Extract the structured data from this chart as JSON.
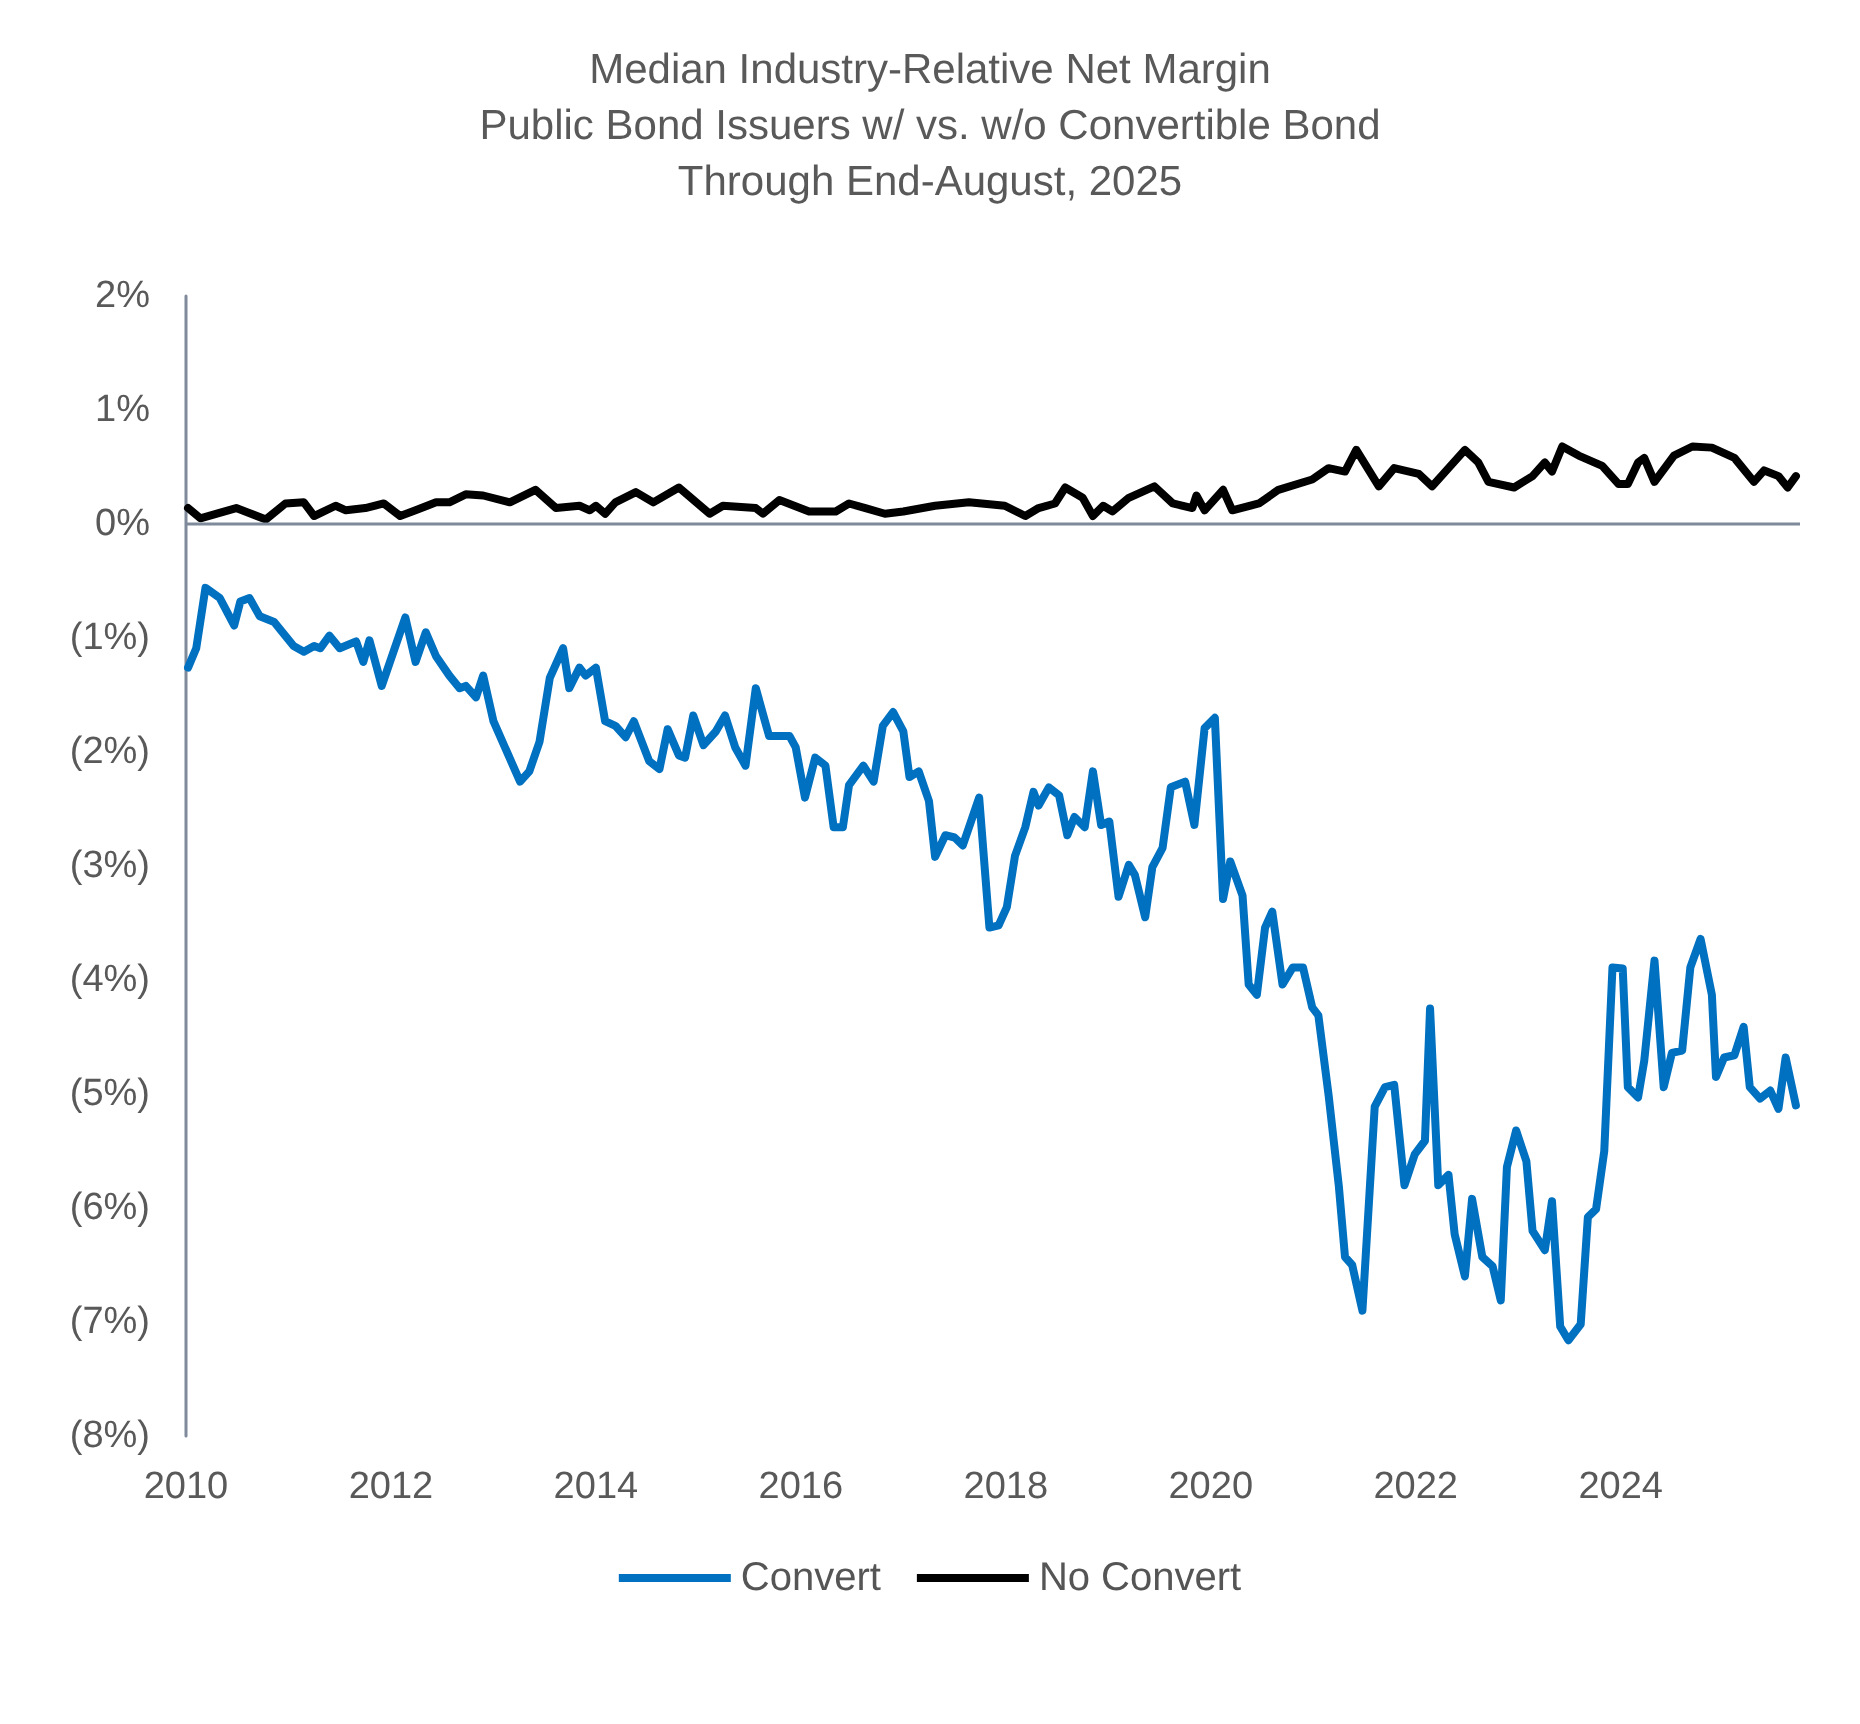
{
  "chart_data": {
    "type": "line",
    "title": "Median Industry-Relative Net Margin\nPublic Bond Issuers w/ vs. w/o Convertible Bond\nThrough End-August, 2025",
    "xlim": [
      2010,
      2025.75
    ],
    "xticks": [
      2010,
      2012,
      2014,
      2016,
      2018,
      2020,
      2022,
      2024
    ],
    "ylim": [
      -8,
      2
    ],
    "yticks": [
      {
        "value": 2,
        "label": "2%"
      },
      {
        "value": 1,
        "label": "1%"
      },
      {
        "value": 0,
        "label": "0%"
      },
      {
        "value": -1,
        "label": "(1%)"
      },
      {
        "value": -2,
        "label": "(2%)"
      },
      {
        "value": -3,
        "label": "(3%)"
      },
      {
        "value": -4,
        "label": "(4%)"
      },
      {
        "value": -5,
        "label": "(5%)"
      },
      {
        "value": -6,
        "label": "(6%)"
      },
      {
        "value": -7,
        "label": "(7%)"
      },
      {
        "value": -8,
        "label": "(8%)"
      }
    ],
    "grid": false,
    "legend": "bottom",
    "marker": "none",
    "line_style": "solid",
    "ref_lines": [
      {
        "axis": "y",
        "value": 0,
        "label": null,
        "color": "#7f8a9a"
      }
    ],
    "series": [
      {
        "name": "Convert",
        "color": "#0070c0",
        "x": [
          2010.02,
          2010.1,
          2010.19,
          2010.33,
          2010.47,
          2010.53,
          2010.62,
          2010.72,
          2010.86,
          2011.05,
          2011.15,
          2011.25,
          2011.31,
          2011.4,
          2011.5,
          2011.66,
          2011.73,
          2011.79,
          2011.91,
          2012.14,
          2012.24,
          2012.34,
          2012.44,
          2012.57,
          2012.67,
          2012.73,
          2012.83,
          2012.9,
          2013.0,
          2013.26,
          2013.35,
          2013.45,
          2013.55,
          2013.68,
          2013.74,
          2013.84,
          2013.9,
          2014.0,
          2014.09,
          2014.19,
          2014.29,
          2014.37,
          2014.52,
          2014.62,
          2014.7,
          2014.81,
          2014.87,
          2014.95,
          2015.05,
          2015.17,
          2015.26,
          2015.36,
          2015.46,
          2015.56,
          2015.69,
          2015.89,
          2015.95,
          2016.04,
          2016.14,
          2016.24,
          2016.32,
          2016.41,
          2016.47,
          2016.61,
          2016.71,
          2016.8,
          2016.9,
          2017.0,
          2017.06,
          2017.15,
          2017.25,
          2017.31,
          2017.41,
          2017.5,
          2017.58,
          2017.74,
          2017.84,
          2017.93,
          2018.01,
          2018.09,
          2018.19,
          2018.27,
          2018.32,
          2018.42,
          2018.52,
          2018.6,
          2018.67,
          2018.77,
          2018.85,
          2018.93,
          2019.01,
          2019.1,
          2019.2,
          2019.26,
          2019.36,
          2019.43,
          2019.53,
          2019.61,
          2019.75,
          2019.84,
          2019.94,
          2020.04,
          2020.12,
          2020.19,
          2020.31,
          2020.37,
          2020.45,
          2020.53,
          2020.6,
          2020.7,
          2020.8,
          2020.9,
          2020.99,
          2021.05,
          2021.15,
          2021.25,
          2021.31,
          2021.38,
          2021.48,
          2021.6,
          2021.7,
          2021.79,
          2021.89,
          2021.99,
          2022.09,
          2022.14,
          2022.22,
          2022.32,
          2022.38,
          2022.48,
          2022.55,
          2022.65,
          2022.75,
          2022.83,
          2022.89,
          2022.98,
          2023.08,
          2023.14,
          2023.26,
          2023.33,
          2023.41,
          2023.49,
          2023.61,
          2023.68,
          2023.76,
          2023.84,
          2023.92,
          2024.02,
          2024.07,
          2024.17,
          2024.23,
          2024.33,
          2024.42,
          2024.5,
          2024.6,
          2024.68,
          2024.78,
          2024.89,
          2024.93,
          2025.01,
          2025.11,
          2025.2,
          2025.26,
          2025.36,
          2025.46,
          2025.54,
          2025.61,
          2025.71
        ],
        "values": [
          -1.26,
          -1.09,
          -0.56,
          -0.65,
          -0.89,
          -0.68,
          -0.65,
          -0.81,
          -0.86,
          -1.07,
          -1.12,
          -1.07,
          -1.09,
          -0.98,
          -1.09,
          -1.03,
          -1.21,
          -1.02,
          -1.42,
          -0.82,
          -1.21,
          -0.95,
          -1.16,
          -1.33,
          -1.44,
          -1.42,
          -1.52,
          -1.33,
          -1.73,
          -2.26,
          -2.17,
          -1.91,
          -1.35,
          -1.09,
          -1.44,
          -1.26,
          -1.33,
          -1.26,
          -1.73,
          -1.77,
          -1.87,
          -1.73,
          -2.08,
          -2.15,
          -1.8,
          -2.03,
          -2.05,
          -1.68,
          -1.94,
          -1.82,
          -1.68,
          -1.96,
          -2.12,
          -1.44,
          -1.86,
          -1.86,
          -1.96,
          -2.4,
          -2.05,
          -2.12,
          -2.66,
          -2.66,
          -2.29,
          -2.12,
          -2.26,
          -1.77,
          -1.65,
          -1.82,
          -2.22,
          -2.17,
          -2.43,
          -2.92,
          -2.73,
          -2.75,
          -2.82,
          -2.4,
          -3.54,
          -3.52,
          -3.36,
          -2.91,
          -2.66,
          -2.35,
          -2.47,
          -2.31,
          -2.38,
          -2.73,
          -2.57,
          -2.66,
          -2.17,
          -2.64,
          -2.61,
          -3.27,
          -2.99,
          -3.08,
          -3.45,
          -3.01,
          -2.84,
          -2.31,
          -2.26,
          -2.64,
          -1.79,
          -1.7,
          -3.29,
          -2.96,
          -3.26,
          -4.04,
          -4.13,
          -3.54,
          -3.4,
          -4.04,
          -3.89,
          -3.89,
          -4.24,
          -4.31,
          -5.01,
          -5.81,
          -6.43,
          -6.5,
          -6.9,
          -5.11,
          -4.94,
          -4.92,
          -5.8,
          -5.53,
          -5.41,
          -4.25,
          -5.8,
          -5.71,
          -6.23,
          -6.6,
          -5.92,
          -6.43,
          -6.51,
          -6.81,
          -5.64,
          -5.32,
          -5.59,
          -6.2,
          -6.37,
          -5.94,
          -7.04,
          -7.16,
          -7.02,
          -6.08,
          -6.01,
          -5.5,
          -3.89,
          -3.9,
          -4.94,
          -5.03,
          -4.71,
          -3.83,
          -4.94,
          -4.64,
          -4.62,
          -3.89,
          -3.64,
          -4.13,
          -4.85,
          -4.68,
          -4.66,
          -4.41,
          -4.94,
          -5.04,
          -4.97,
          -5.13,
          -4.68,
          -5.1
        ]
      },
      {
        "name": "No Convert",
        "color": "#000000",
        "x": [
          2010.02,
          2010.14,
          2010.49,
          2010.78,
          2010.97,
          2011.15,
          2011.25,
          2011.46,
          2011.56,
          2011.75,
          2011.93,
          2012.09,
          2012.24,
          2012.44,
          2012.57,
          2012.73,
          2012.9,
          2013.16,
          2013.41,
          2013.61,
          2013.84,
          2013.94,
          2014.0,
          2014.09,
          2014.19,
          2014.39,
          2014.56,
          2014.81,
          2015.11,
          2015.24,
          2015.56,
          2015.63,
          2015.79,
          2016.08,
          2016.34,
          2016.47,
          2016.63,
          2016.82,
          2017.0,
          2017.31,
          2017.64,
          2017.99,
          2018.19,
          2018.32,
          2018.48,
          2018.58,
          2018.75,
          2018.85,
          2018.95,
          2019.04,
          2019.2,
          2019.45,
          2019.63,
          2019.82,
          2019.86,
          2019.94,
          2020.12,
          2020.21,
          2020.47,
          2020.66,
          2020.99,
          2021.15,
          2021.31,
          2021.42,
          2021.64,
          2021.79,
          2022.03,
          2022.16,
          2022.32,
          2022.48,
          2022.61,
          2022.71,
          2022.96,
          2023.14,
          2023.26,
          2023.33,
          2023.43,
          2023.59,
          2023.82,
          2023.98,
          2024.07,
          2024.17,
          2024.23,
          2024.33,
          2024.52,
          2024.7,
          2024.89,
          2025.11,
          2025.3,
          2025.4,
          2025.54,
          2025.63,
          2025.71
        ],
        "values": [
          0.14,
          0.05,
          0.14,
          0.04,
          0.18,
          0.19,
          0.07,
          0.16,
          0.12,
          0.14,
          0.18,
          0.07,
          0.12,
          0.19,
          0.19,
          0.26,
          0.25,
          0.19,
          0.3,
          0.14,
          0.16,
          0.12,
          0.16,
          0.09,
          0.19,
          0.28,
          0.19,
          0.32,
          0.09,
          0.16,
          0.14,
          0.09,
          0.21,
          0.11,
          0.11,
          0.18,
          0.14,
          0.09,
          0.11,
          0.16,
          0.19,
          0.16,
          0.07,
          0.14,
          0.18,
          0.32,
          0.23,
          0.07,
          0.16,
          0.11,
          0.23,
          0.33,
          0.18,
          0.14,
          0.25,
          0.12,
          0.3,
          0.12,
          0.18,
          0.3,
          0.39,
          0.49,
          0.46,
          0.65,
          0.33,
          0.49,
          0.44,
          0.33,
          0.49,
          0.65,
          0.54,
          0.37,
          0.32,
          0.42,
          0.54,
          0.46,
          0.68,
          0.6,
          0.51,
          0.35,
          0.35,
          0.54,
          0.58,
          0.37,
          0.6,
          0.68,
          0.67,
          0.58,
          0.37,
          0.47,
          0.42,
          0.32,
          0.42
        ]
      }
    ]
  }
}
